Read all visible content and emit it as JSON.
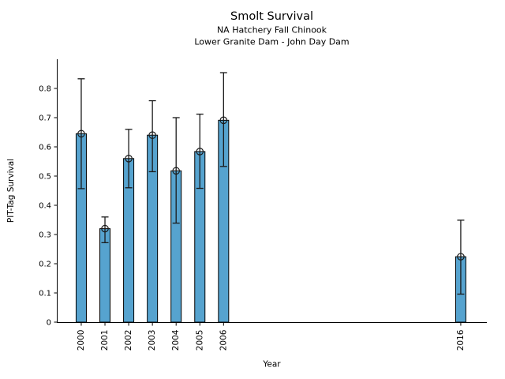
{
  "chart_data": {
    "type": "bar",
    "title": "Smolt Survival",
    "subtitle1": "NA Hatchery Fall Chinook",
    "subtitle2": "Lower Granite Dam - John Day Dam",
    "xlabel": "Year",
    "ylabel": "PIT-Tag Survival",
    "categories": [
      "2000",
      "2001",
      "2002",
      "2003",
      "2004",
      "2005",
      "2006",
      "2016"
    ],
    "x": [
      2000,
      2001,
      2002,
      2003,
      2004,
      2005,
      2006,
      2016
    ],
    "values": [
      0.645,
      0.32,
      0.56,
      0.64,
      0.518,
      0.584,
      0.691,
      0.224
    ],
    "error_low": [
      0.457,
      0.272,
      0.46,
      0.515,
      0.339,
      0.458,
      0.533,
      0.096
    ],
    "error_high": [
      0.833,
      0.36,
      0.66,
      0.758,
      0.7,
      0.712,
      0.854,
      0.349
    ],
    "ytick_values": [
      0,
      0.1,
      0.2,
      0.3,
      0.4,
      0.5,
      0.6,
      0.7,
      0.8
    ],
    "ytick_labels": [
      "0",
      "0.1",
      "0.2",
      "0.3",
      "0.4",
      "0.5",
      "0.6",
      "0.7",
      "0.8"
    ],
    "xlim": [
      1998.97,
      2017.1
    ],
    "ylim": [
      0,
      0.9
    ],
    "grid": false,
    "legend": null,
    "marker": "open-circle",
    "bar_color": "#56a3cf",
    "bar_edge_color": "#000000",
    "error_color": "#1a1a1a",
    "axis_color": "#000000",
    "text_color": "#000000",
    "background": "#ffffff"
  }
}
